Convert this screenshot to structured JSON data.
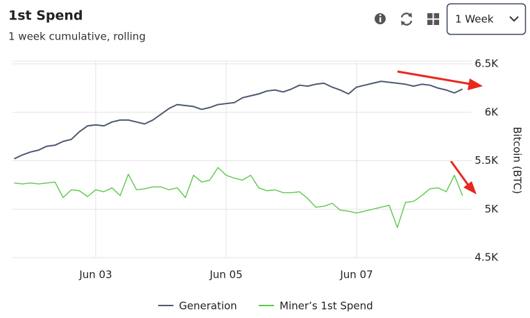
{
  "chart_data": {
    "type": "line",
    "title": "1st Spend",
    "subtitle": "1 week cumulative, rolling",
    "range_selector": "1 Week",
    "y_axis_label": "Bitcoin (BTC)",
    "categories": [
      null,
      null,
      null,
      null,
      null,
      null,
      null,
      null,
      null,
      null,
      "Jun 03",
      null,
      null,
      null,
      null,
      null,
      null,
      null,
      null,
      null,
      null,
      null,
      null,
      null,
      null,
      null,
      "Jun 05",
      null,
      null,
      null,
      null,
      null,
      null,
      null,
      null,
      null,
      null,
      null,
      null,
      null,
      null,
      null,
      "Jun 07",
      null,
      null,
      null,
      null,
      null,
      null,
      null,
      null,
      null,
      null,
      null,
      null,
      null
    ],
    "series": [
      {
        "name": "Generation",
        "color": "#4d5872",
        "values": [
          5520,
          5560,
          5590,
          5610,
          5650,
          5660,
          5700,
          5720,
          5800,
          5860,
          5870,
          5860,
          5900,
          5920,
          5920,
          5900,
          5880,
          5920,
          5980,
          6040,
          6080,
          6070,
          6060,
          6030,
          6050,
          6080,
          6090,
          6100,
          6150,
          6170,
          6190,
          6220,
          6230,
          6210,
          6240,
          6280,
          6270,
          6290,
          6300,
          6260,
          6230,
          6190,
          6260,
          6280,
          6300,
          6320,
          6310,
          6300,
          6290,
          6270,
          6290,
          6280,
          6250,
          6230,
          6200,
          6240
        ]
      },
      {
        "name": "Miner’s 1st Spend",
        "color": "#5cc84a",
        "values": [
          5270,
          5260,
          5270,
          5260,
          5270,
          5280,
          5120,
          5200,
          5190,
          5130,
          5200,
          5180,
          5220,
          5140,
          5360,
          5200,
          5210,
          5230,
          5230,
          5200,
          5220,
          5120,
          5350,
          5280,
          5300,
          5430,
          5350,
          5320,
          5300,
          5350,
          5220,
          5190,
          5200,
          5170,
          5170,
          5180,
          5110,
          5020,
          5030,
          5060,
          4990,
          4980,
          4960,
          4980,
          5000,
          5020,
          5040,
          4810,
          5070,
          5080,
          5140,
          5210,
          5220,
          5180,
          5350,
          5140
        ]
      }
    ],
    "ylim": [
      4500,
      6500
    ],
    "yticks": [
      {
        "value": 4500,
        "label": "4.5K"
      },
      {
        "value": 5000,
        "label": "5K"
      },
      {
        "value": 5500,
        "label": "5.5K"
      },
      {
        "value": 6000,
        "label": "6K"
      },
      {
        "value": 6500,
        "label": "6.5K"
      }
    ],
    "grid": true,
    "legend": "bottom"
  }
}
